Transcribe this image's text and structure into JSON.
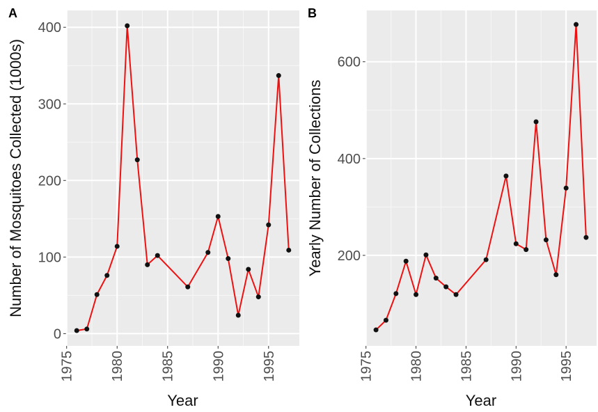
{
  "chart_data": [
    {
      "type": "line",
      "tag": "A",
      "x_label": "Year",
      "y_label": "Number of Mosquitoes Collected (1000s)",
      "x": [
        1976,
        1977,
        1978,
        1979,
        1980,
        1981,
        1982,
        1983,
        1984,
        1987,
        1989,
        1990,
        1991,
        1992,
        1993,
        1994,
        1995,
        1996,
        1997
      ],
      "values": [
        4,
        6,
        51,
        76,
        114,
        402,
        227,
        90,
        102,
        61,
        106,
        153,
        98,
        24,
        84,
        48,
        142,
        337,
        109
      ],
      "color": "#ee1111",
      "point_color": "#111111",
      "xlim": [
        1974.95,
        1998.05
      ],
      "xticks": [
        1975,
        1980,
        1985,
        1990,
        1995
      ],
      "ylim": [
        -16,
        422
      ],
      "yticks": [
        0,
        100,
        200,
        300,
        400
      ],
      "grid": true
    },
    {
      "type": "line",
      "tag": "B",
      "x_label": "Year",
      "y_label": "Yearly Number of Collections",
      "x": [
        1976,
        1977,
        1978,
        1979,
        1980,
        1981,
        1982,
        1983,
        1984,
        1987,
        1989,
        1990,
        1991,
        1992,
        1993,
        1994,
        1995,
        1996,
        1997
      ],
      "values": [
        46,
        66,
        121,
        188,
        119,
        201,
        153,
        135,
        119,
        191,
        364,
        224,
        212,
        476,
        232,
        160,
        339,
        677,
        237
      ],
      "color": "#ee1111",
      "point_color": "#111111",
      "xlim": [
        1974.95,
        1998.05
      ],
      "xticks": [
        1975,
        1980,
        1985,
        1990,
        1995
      ],
      "ylim": [
        13,
        706
      ],
      "yticks": [
        200,
        400,
        600
      ],
      "grid": true
    }
  ]
}
